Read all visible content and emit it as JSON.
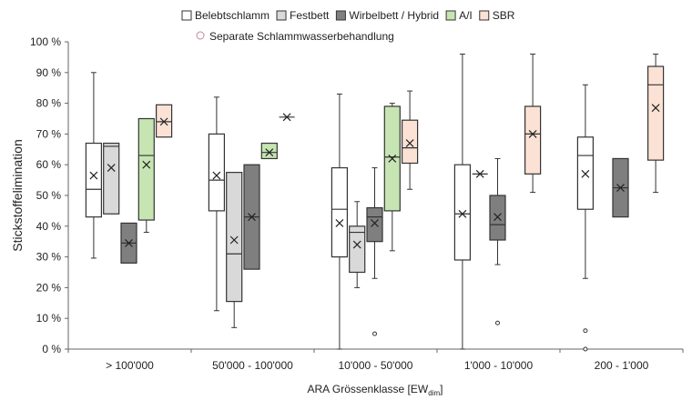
{
  "chart_data": {
    "type": "box",
    "title": "",
    "xlabel": "ARA Grössenklasse [EW",
    "xlabel_sub": "dim",
    "xlabel_end": "]",
    "ylabel": "Stickstoffelimination",
    "ylim": [
      0,
      100
    ],
    "yticks": [
      "0 %",
      "10 %",
      "20 %",
      "30 %",
      "40 %",
      "50 %",
      "60 %",
      "70 %",
      "80 %",
      "90 %",
      "100 %"
    ],
    "grid": false,
    "legend_position": "top",
    "categories": [
      "> 100'000",
      "50'000 - 100'000",
      "10'000 - 50'000",
      "1'000 - 10'000",
      "200 - 1'000"
    ],
    "series": [
      {
        "name": "Belebtschlamm",
        "color": "#ffffff",
        "boxes": [
          {
            "min": 29.6,
            "q1": 43,
            "median": 52,
            "q3": 67,
            "max": 90,
            "mean": 56.5
          },
          {
            "min": 12.5,
            "q1": 45,
            "median": 55,
            "q3": 70,
            "max": 82,
            "mean": 56.5
          },
          {
            "min": 0,
            "q1": 30,
            "median": 45.5,
            "q3": 59,
            "max": 83,
            "mean": 41
          },
          {
            "min": 0,
            "q1": 29,
            "median": 44,
            "q3": 60,
            "max": 96,
            "mean": 44
          },
          {
            "min": 23,
            "q1": 45.5,
            "median": 63,
            "q3": 69,
            "max": 86,
            "mean": 57,
            "outliers": [
              6,
              0
            ]
          }
        ]
      },
      {
        "name": "Festbett",
        "color": "#d9d9d9",
        "boxes": [
          {
            "min": 44,
            "q1": 44,
            "median": 66,
            "q3": 67,
            "max": 67,
            "mean": 59
          },
          {
            "min": 7,
            "q1": 15.5,
            "median": 31,
            "q3": 57.5,
            "max": 57.5,
            "mean": 35.5
          },
          {
            "min": 20,
            "q1": 25,
            "median": 38,
            "q3": 40,
            "max": 48,
            "mean": 34
          },
          {
            "min": 57,
            "q1": 57,
            "median": 57,
            "q3": 57,
            "max": 57,
            "mean": 57
          },
          null
        ]
      },
      {
        "name": "Wirbelbett / Hybrid",
        "color": "#7f7f7f",
        "boxes": [
          {
            "min": 28,
            "q1": 28,
            "median": 34.5,
            "q3": 41,
            "max": 41,
            "mean": 34.5
          },
          {
            "min": 26,
            "q1": 26,
            "median": 43,
            "q3": 60,
            "max": 60,
            "mean": 43
          },
          {
            "min": 23,
            "q1": 35,
            "median": 43,
            "q3": 46,
            "max": 59,
            "mean": 41,
            "outliers": [
              5
            ]
          },
          {
            "min": 27.5,
            "q1": 35.5,
            "median": 40.5,
            "q3": 50,
            "max": 62,
            "mean": 43,
            "outliers": [
              8.5
            ]
          },
          {
            "min": 43,
            "q1": 43,
            "median": 52.5,
            "q3": 62,
            "max": 62,
            "mean": 52.5
          }
        ]
      },
      {
        "name": "A/I",
        "color": "#c6e5b3",
        "boxes": [
          {
            "min": 38,
            "q1": 42,
            "median": 63,
            "q3": 75,
            "max": 75,
            "mean": 60
          },
          {
            "min": 62,
            "q1": 62,
            "median": 64,
            "q3": 67,
            "max": 67,
            "mean": 64
          },
          {
            "min": 32,
            "q1": 45,
            "median": 62.5,
            "q3": 79,
            "max": 80,
            "mean": 62
          },
          null,
          null
        ]
      },
      {
        "name": "SBR",
        "color": "#fbe2d5",
        "boxes": [
          {
            "min": 69,
            "q1": 69,
            "median": 74,
            "q3": 79.5,
            "max": 79.5,
            "mean": 74
          },
          {
            "min": 75.5,
            "q1": 75.5,
            "median": 75.5,
            "q3": 75.5,
            "max": 75.5,
            "mean": 75.5
          },
          {
            "min": 52,
            "q1": 60.5,
            "median": 65.5,
            "q3": 74.5,
            "max": 84,
            "mean": 67
          },
          {
            "min": 51,
            "q1": 57,
            "median": 70,
            "q3": 79,
            "max": 96,
            "mean": 70
          },
          {
            "min": 51,
            "q1": 61.5,
            "median": 86,
            "q3": 92,
            "max": 96,
            "mean": 78.5
          }
        ]
      }
    ],
    "extra_legend": {
      "name": "Separate Schlammwasserbehandlung",
      "color": "#c08a95"
    }
  }
}
